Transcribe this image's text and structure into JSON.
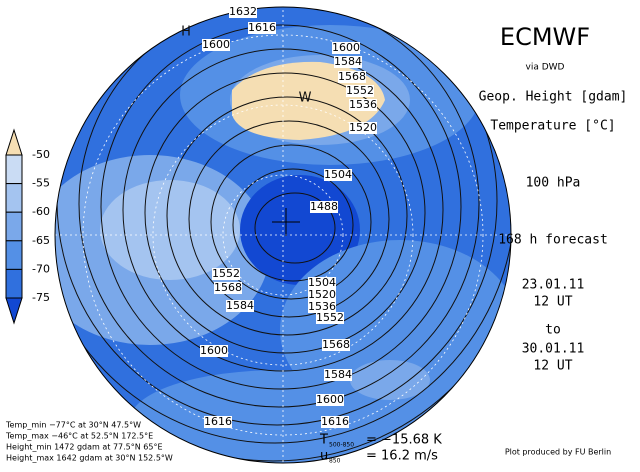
{
  "header": {
    "title": "ECMWF",
    "source": "via DWD",
    "field_1": "Geop. Height [gdam]",
    "field_2": "Temperature [°C]",
    "level": "100 hPa",
    "forecast": "168 h forecast",
    "from_date": "23.01.11",
    "from_time": "12 UT",
    "to": "to",
    "to_date": "30.01.11",
    "to_time": "12 UT"
  },
  "colorbar": {
    "levels": [
      -50,
      -55,
      -60,
      -65,
      -70,
      -75
    ],
    "colors": [
      "#f5deb3",
      "#cadcf4",
      "#a4c4f0",
      "#7aa8ea",
      "#5490e6",
      "#3070de",
      "#1248d2"
    ]
  },
  "map": {
    "markers": [
      "H",
      "W"
    ],
    "contour_labels": [
      1632,
      1616,
      1600,
      1600,
      1584,
      1568,
      1552,
      1536,
      1520,
      1504,
      1488,
      1552,
      1568,
      1584,
      1504,
      1520,
      1536,
      1552,
      1568,
      1584,
      1600,
      1600,
      1616,
      1616
    ]
  },
  "footer": {
    "stats": [
      "Temp_min −77°C at 30°N 47.5°W",
      "Temp_max −46°C at 52.5°N 172.5°E",
      "Height_min 1472 gdam at 77.5°N 65°E",
      "Height_max 1642 gdam at 30°N 152.5°W"
    ],
    "t_symbol": "T",
    "t_sub": "500-850",
    "t_value": "= −15.68 K",
    "u_symbol": "u",
    "u_sub": "850",
    "u_value": "= 16.2 m/s",
    "credit": "Plot produced by FU Berlin"
  }
}
